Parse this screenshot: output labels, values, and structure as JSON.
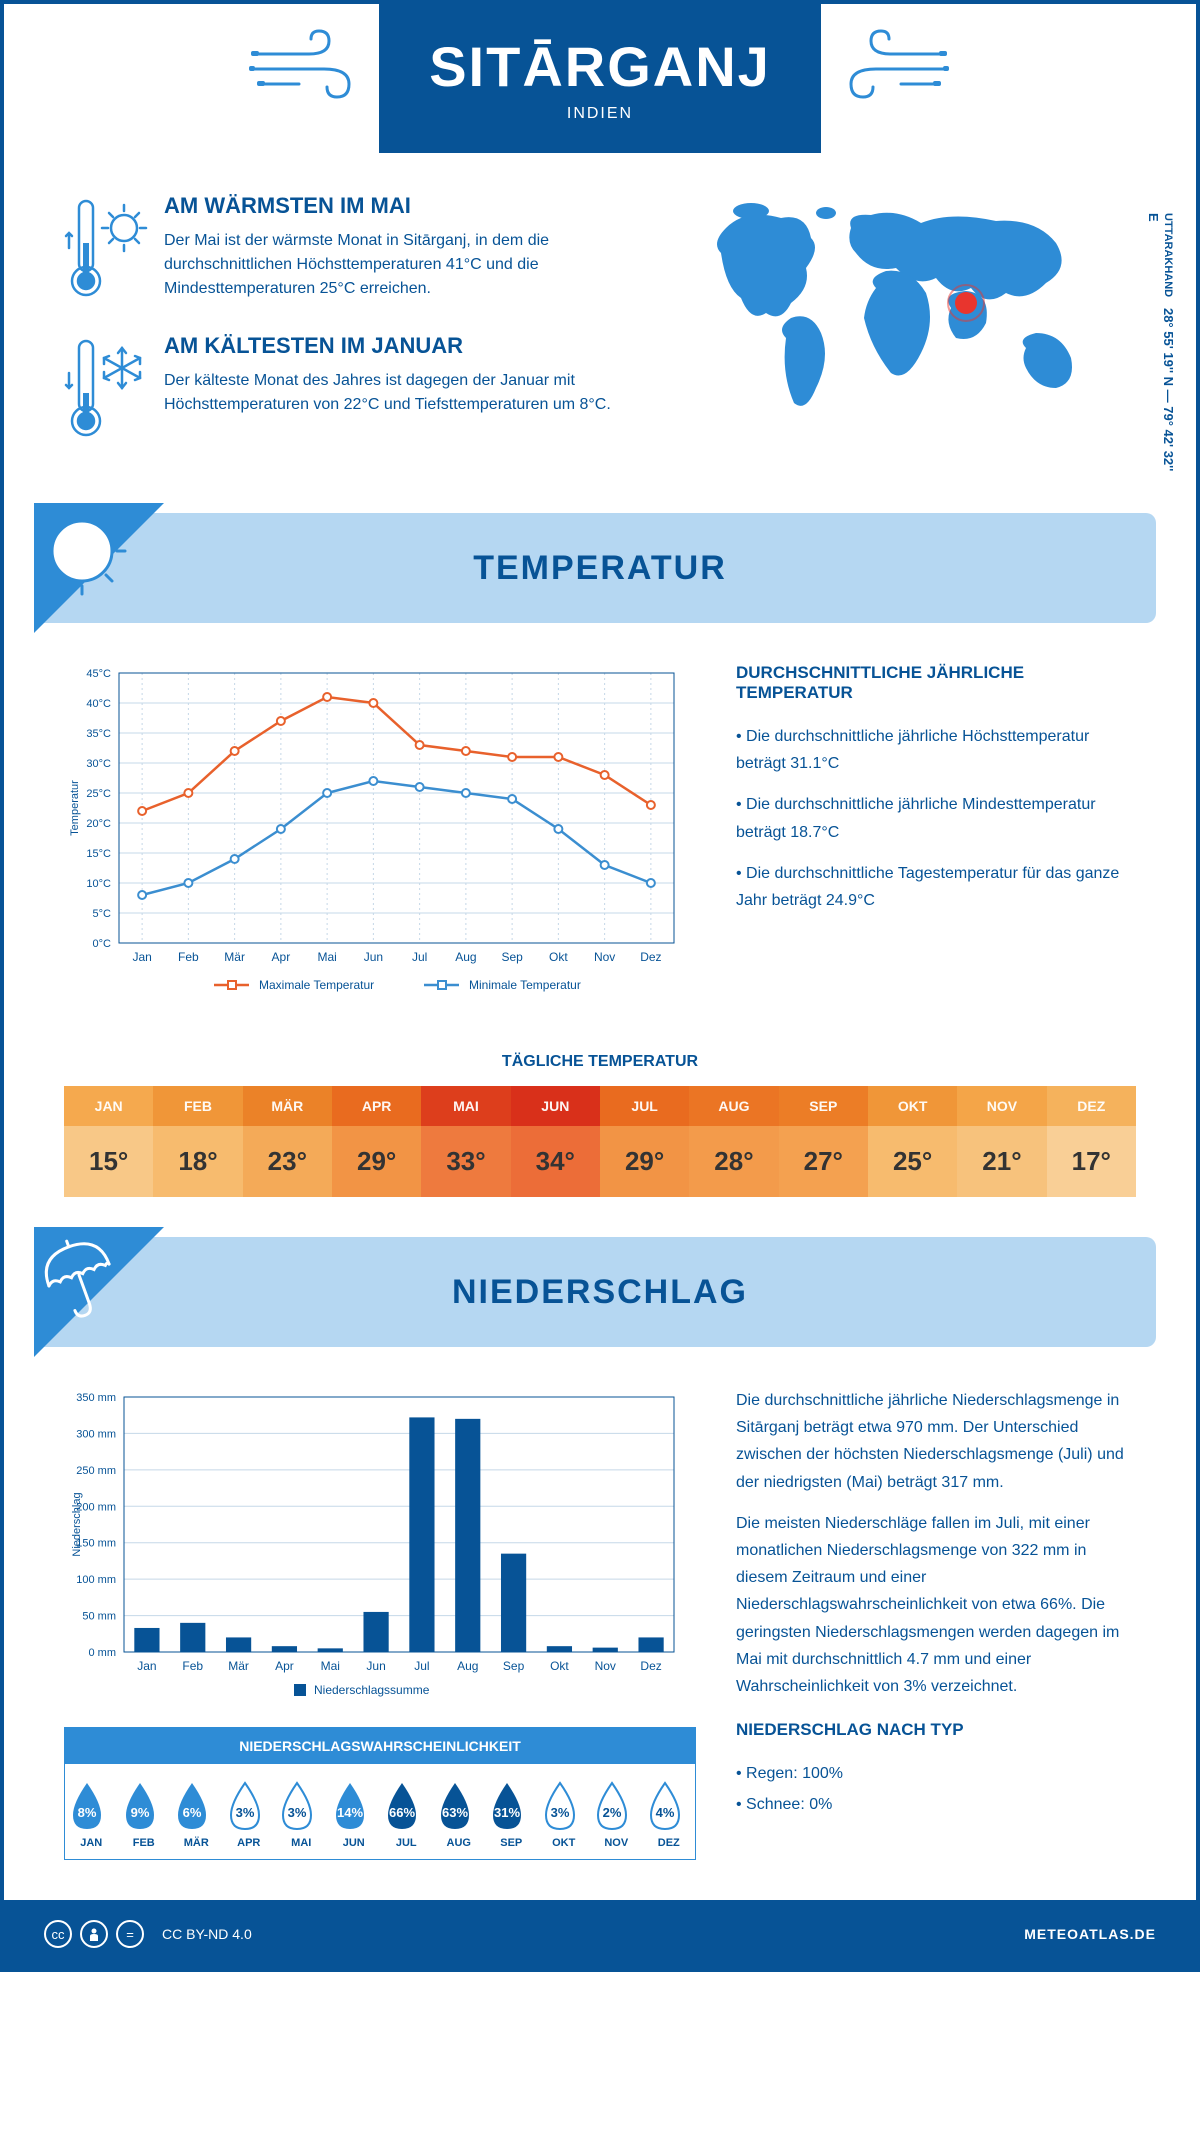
{
  "colors": {
    "primary": "#075396",
    "secondary": "#2e8cd6",
    "light_blue": "#b5d7f2",
    "max_line": "#e8612c",
    "min_line": "#3b8ed0",
    "grid": "#c5d8e8",
    "bg": "#ffffff"
  },
  "header": {
    "title": "SITĀRGANJ",
    "subtitle": "INDIEN"
  },
  "info": {
    "warm": {
      "title": "AM WÄRMSTEN IM MAI",
      "text": "Der Mai ist der wärmste Monat in Sitārganj, in dem die durchschnittlichen Höchsttemperaturen 41°C und die Mindesttemperaturen 25°C erreichen."
    },
    "cold": {
      "title": "AM KÄLTESTEN IM JANUAR",
      "text": "Der kälteste Monat des Jahres ist dagegen der Januar mit Höchsttemperaturen von 22°C und Tiefsttemperaturen um 8°C."
    },
    "coords": "28° 55' 19'' N — 79° 42' 32'' E",
    "region": "UTTARAKHAND"
  },
  "temperature": {
    "banner_title": "TEMPERATUR",
    "months_short": [
      "Jan",
      "Feb",
      "Mär",
      "Apr",
      "Mai",
      "Jun",
      "Jul",
      "Aug",
      "Sep",
      "Okt",
      "Nov",
      "Dez"
    ],
    "months_upper": [
      "JAN",
      "FEB",
      "MÄR",
      "APR",
      "MAI",
      "JUN",
      "JUL",
      "AUG",
      "SEP",
      "OKT",
      "NOV",
      "DEZ"
    ],
    "chart": {
      "ylabel": "Temperatur",
      "ylim": [
        0,
        45
      ],
      "ytick_step": 5,
      "max_values": [
        22,
        25,
        32,
        37,
        41,
        40,
        33,
        32,
        31,
        31,
        28,
        23
      ],
      "min_values": [
        8,
        10,
        14,
        19,
        25,
        27,
        26,
        25,
        24,
        19,
        13,
        10
      ],
      "legend_max": "Maximale Temperatur",
      "legend_min": "Minimale Temperatur"
    },
    "desc": {
      "heading": "DURCHSCHNITTLICHE JÄHRLICHE TEMPERATUR",
      "p1": "• Die durchschnittliche jährliche Höchsttemperatur beträgt 31.1°C",
      "p2": "• Die durchschnittliche jährliche Mindesttemperatur beträgt 18.7°C",
      "p3": "• Die durchschnittliche Tagestemperatur für das ganze Jahr beträgt 24.9°C"
    },
    "daily_heading": "TÄGLICHE TEMPERATUR",
    "daily_values": [
      "15°",
      "18°",
      "23°",
      "29°",
      "33°",
      "34°",
      "29°",
      "28°",
      "27°",
      "25°",
      "21°",
      "17°"
    ],
    "daily_colors_top": [
      "#f5a94e",
      "#f09638",
      "#eb8228",
      "#e96b1f",
      "#dd3e1c",
      "#d9301a",
      "#e96b1f",
      "#eb7524",
      "#ec7d26",
      "#f09638",
      "#f4a548",
      "#f5b25c"
    ],
    "daily_colors_bottom": [
      "#f8c887",
      "#f7bb6e",
      "#f4aa58",
      "#f29445",
      "#ee7a3e",
      "#ec6d38",
      "#f29445",
      "#f39b4b",
      "#f4a150",
      "#f7bb6e",
      "#f7c27c",
      "#f9cf96"
    ]
  },
  "precipitation": {
    "banner_title": "NIEDERSCHLAG",
    "chart": {
      "ylabel": "Niederschlag",
      "ylim": [
        0,
        350
      ],
      "ytick_step": 50,
      "values": [
        33,
        40,
        20,
        8,
        5,
        55,
        322,
        320,
        135,
        8,
        6,
        20
      ],
      "legend": "Niederschlagssumme"
    },
    "prob": {
      "heading": "NIEDERSCHLAGSWAHRSCHEINLICHKEIT",
      "values": [
        "8%",
        "9%",
        "6%",
        "3%",
        "3%",
        "14%",
        "66%",
        "63%",
        "31%",
        "3%",
        "2%",
        "4%"
      ],
      "filled": [
        true,
        true,
        true,
        false,
        false,
        true,
        true,
        true,
        true,
        false,
        false,
        false
      ],
      "dark": [
        false,
        false,
        false,
        false,
        false,
        false,
        true,
        true,
        true,
        false,
        false,
        false
      ]
    },
    "desc": {
      "p1": "Die durchschnittliche jährliche Niederschlagsmenge in Sitārganj beträgt etwa 970 mm. Der Unterschied zwischen der höchsten Niederschlagsmenge (Juli) und der niedrigsten (Mai) beträgt 317 mm.",
      "p2": "Die meisten Niederschläge fallen im Juli, mit einer monatlichen Niederschlagsmenge von 322 mm in diesem Zeitraum und einer Niederschlagswahrscheinlichkeit von etwa 66%. Die geringsten Niederschlagsmengen werden dagegen im Mai mit durchschnittlich 4.7 mm und einer Wahrscheinlichkeit von 3% verzeichnet.",
      "type_heading": "NIEDERSCHLAG NACH TYP",
      "type1": "• Regen: 100%",
      "type2": "• Schnee: 0%"
    }
  },
  "footer": {
    "license": "CC BY-ND 4.0",
    "site": "METEOATLAS.DE"
  }
}
